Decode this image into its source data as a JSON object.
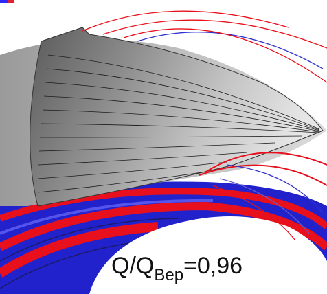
{
  "annotation": {
    "prefix": "Q/Q",
    "subscript": "Bep",
    "suffix": "=0,96"
  }
}
